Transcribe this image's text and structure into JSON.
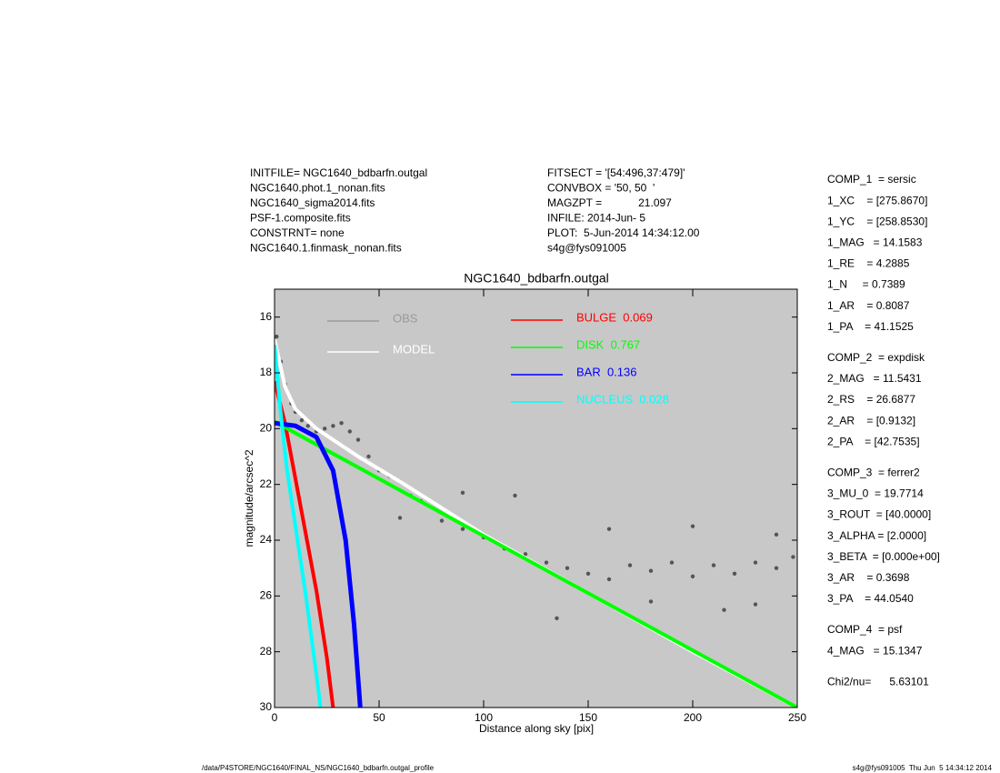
{
  "header": {
    "left": [
      "INITFILE= NGC1640_bdbarfn.outgal",
      "NGC1640.phot.1_nonan.fits",
      "NGC1640_sigma2014.fits",
      "PSF-1.composite.fits",
      "CONSTRNT= none",
      "NGC1640.1.finmask_nonan.fits"
    ],
    "center": [
      "FITSECT = '[54:496,37:479]'",
      "CONVBOX = '50, 50  '",
      "MAGZPT =            21.097",
      "INFILE: 2014-Jun- 5",
      "PLOT:  5-Jun-2014 14:34:12.00",
      "s4g@fys091005"
    ]
  },
  "parameters": [
    [
      "COMP_1  = sersic",
      "1_XC    = [275.8670]",
      "1_YC    = [258.8530]",
      "1_MAG   = 14.1583",
      "1_RE    = 4.2885",
      "1_N     = 0.7389",
      "1_AR    = 0.8087",
      "1_PA    = 41.1525"
    ],
    [
      "COMP_2  = expdisk",
      "2_MAG   = 11.5431",
      "2_RS    = 26.6877",
      "2_AR    = [0.9132]",
      "2_PA    = [42.7535]"
    ],
    [
      "COMP_3  = ferrer2",
      "3_MU_0  = 19.7714",
      "3_ROUT  = [40.0000]",
      "3_ALPHA = [2.0000]",
      "3_BETA  = [0.000e+00]",
      "3_AR    = 0.3698",
      "3_PA    = 44.0540"
    ],
    [
      "COMP_4  = psf",
      "4_MAG   = 15.1347"
    ],
    [
      "Chi2/nu=      5.63101"
    ]
  ],
  "footer": {
    "left": "/data/P4STORE/NGC1640/FINAL_NS/NGC1640_bdbarfn.outgal_profile",
    "right": "s4g@fys091005  Thu Jun  5 14:34:12 2014"
  },
  "chart_data": {
    "type": "line",
    "title": "NGC1640_bdbarfn.outgal",
    "x_label": "Distance along sky [pix]",
    "y_label": "magnitude/arcsec^2",
    "xlim": [
      0,
      250
    ],
    "ylim": [
      30,
      15
    ],
    "xticks": [
      0,
      50,
      100,
      150,
      200,
      250
    ],
    "yticks": [
      16,
      18,
      20,
      22,
      24,
      26,
      28,
      30
    ],
    "background": "#c8c8c8",
    "series": [
      {
        "name": "OBS",
        "color": "#9a9a9a",
        "marker": "dot",
        "point_color": "#555555",
        "x": [
          1,
          3,
          5,
          8,
          10,
          13,
          16,
          20,
          24,
          28,
          32,
          36,
          40,
          45,
          50,
          55,
          60,
          65,
          70,
          80,
          90,
          100,
          110,
          120,
          130,
          140,
          150,
          160,
          170,
          180,
          190,
          200,
          210,
          220,
          230,
          240,
          248,
          115,
          160,
          200,
          215,
          135,
          60,
          90,
          180,
          240,
          230
        ],
        "values": [
          16.7,
          17.6,
          18.4,
          19.1,
          19.4,
          19.7,
          19.9,
          20.1,
          20.0,
          19.9,
          19.8,
          20.1,
          20.4,
          21.0,
          21.5,
          21.7,
          21.9,
          22.4,
          22.6,
          23.3,
          23.6,
          23.9,
          24.3,
          24.5,
          24.8,
          25.0,
          25.2,
          25.4,
          24.9,
          25.1,
          24.8,
          25.3,
          24.9,
          25.2,
          24.8,
          25.0,
          24.6,
          22.4,
          23.6,
          23.5,
          26.5,
          26.8,
          23.2,
          22.3,
          26.2,
          23.8,
          26.3
        ]
      },
      {
        "name": "MODEL",
        "color": "#ffffff",
        "marker": "line",
        "x": [
          0,
          5,
          10,
          20,
          30,
          40,
          60,
          100,
          150,
          200,
          250
        ],
        "values": [
          16.8,
          18.5,
          19.3,
          20.0,
          20.5,
          21.0,
          21.9,
          23.8,
          25.9,
          28,
          30
        ]
      },
      {
        "name": "BULGE  0.069",
        "color": "#ff0000",
        "marker": "line",
        "x": [
          0,
          5,
          10,
          15,
          20,
          25,
          28
        ],
        "values": [
          18.3,
          19.8,
          21.8,
          23.8,
          25.8,
          28.2,
          30
        ]
      },
      {
        "name": "DISK  0.767",
        "color": "#00ff00",
        "marker": "line",
        "x": [
          0,
          50,
          100,
          150,
          200,
          250
        ],
        "values": [
          19.75,
          21.8,
          23.85,
          25.9,
          27.95,
          30
        ]
      },
      {
        "name": "BAR  0.136",
        "color": "#0000ff",
        "marker": "line",
        "x": [
          0,
          10,
          20,
          28,
          34,
          38,
          41
        ],
        "values": [
          19.8,
          19.9,
          20.3,
          21.5,
          24,
          27,
          30
        ]
      },
      {
        "name": "NUCLEUS  0.028",
        "color": "#00ffff",
        "marker": "line",
        "x": [
          0,
          3,
          6,
          10,
          15,
          20,
          22
        ],
        "values": [
          17.0,
          19.5,
          21.5,
          23.5,
          26,
          28.8,
          30
        ]
      }
    ]
  }
}
